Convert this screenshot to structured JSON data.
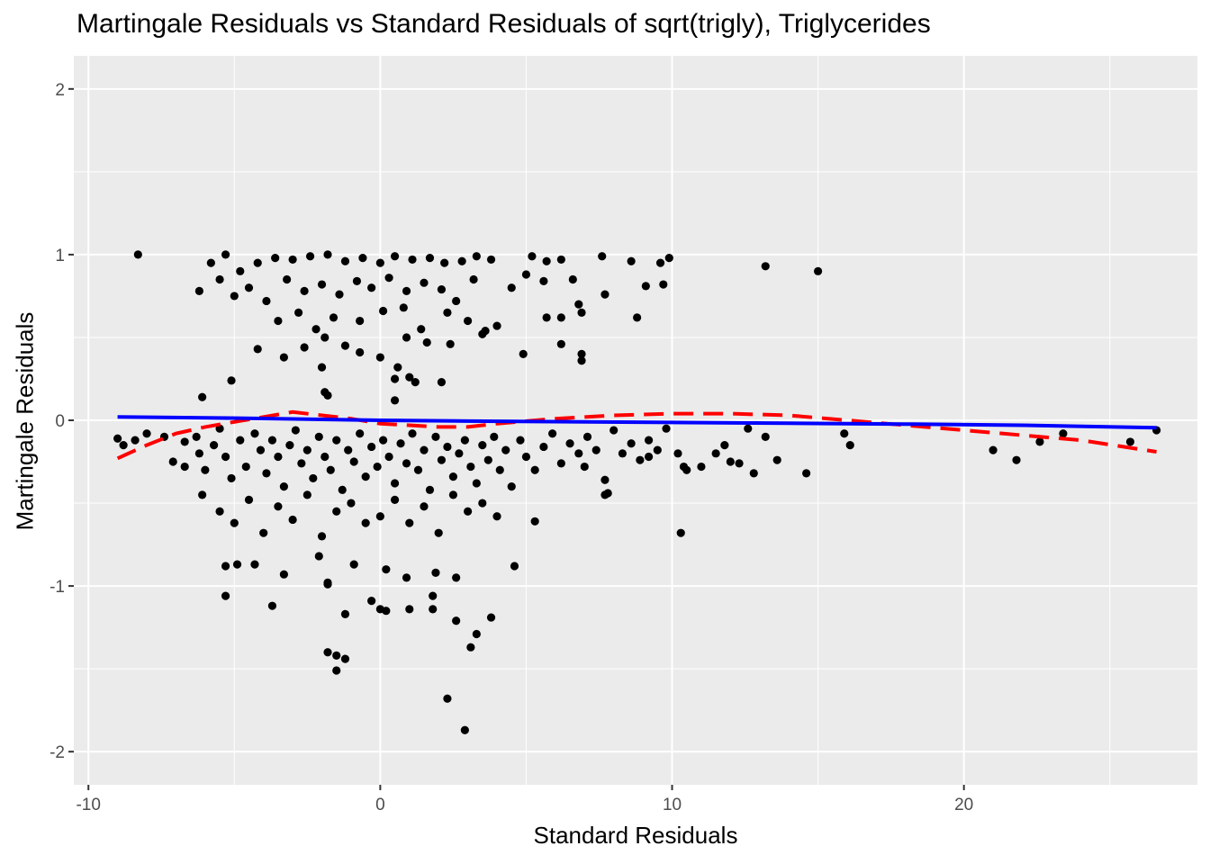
{
  "chart_data": {
    "type": "scatter",
    "title": "Martingale Residuals vs Standard Residuals of sqrt(trigly), Triglycerides",
    "xlabel": "Standard Residuals",
    "ylabel": "Martingale Residuals",
    "xlim": [
      -10.5,
      28
    ],
    "ylim": [
      -2.2,
      2.2
    ],
    "x_ticks": [
      -10,
      0,
      10,
      20
    ],
    "x_tick_labels": [
      "-10",
      "0",
      "10",
      "20"
    ],
    "y_ticks": [
      -2,
      -1,
      0,
      1,
      2
    ],
    "y_tick_labels": [
      "-2",
      "-1",
      "0",
      "1",
      "2"
    ],
    "grid": true,
    "background": "#ebebeb",
    "point_color": "#000000",
    "series": [
      {
        "type": "scatter",
        "color": "#000000",
        "points": [
          [
            -8.3,
            1.0
          ],
          [
            -5.3,
            1.0
          ],
          [
            -5.8,
            0.95
          ],
          [
            -4.8,
            0.9
          ],
          [
            -4.2,
            0.95
          ],
          [
            -3.6,
            0.98
          ],
          [
            -3.0,
            0.97
          ],
          [
            -2.4,
            0.99
          ],
          [
            -1.8,
            1.0
          ],
          [
            -1.2,
            0.96
          ],
          [
            -0.6,
            0.98
          ],
          [
            0.0,
            0.95
          ],
          [
            0.5,
            0.99
          ],
          [
            1.1,
            0.97
          ],
          [
            1.7,
            0.98
          ],
          [
            2.2,
            0.95
          ],
          [
            2.8,
            0.96
          ],
          [
            3.3,
            0.99
          ],
          [
            3.8,
            0.97
          ],
          [
            5.2,
            0.99
          ],
          [
            5.7,
            0.96
          ],
          [
            6.2,
            0.97
          ],
          [
            7.6,
            0.99
          ],
          [
            8.6,
            0.96
          ],
          [
            9.6,
            0.95
          ],
          [
            9.9,
            0.98
          ],
          [
            13.2,
            0.93
          ],
          [
            15.0,
            0.9
          ],
          [
            -6.2,
            0.78
          ],
          [
            -5.5,
            0.85
          ],
          [
            -5.0,
            0.75
          ],
          [
            -4.5,
            0.8
          ],
          [
            -3.9,
            0.72
          ],
          [
            -3.2,
            0.85
          ],
          [
            -2.6,
            0.78
          ],
          [
            -2.0,
            0.82
          ],
          [
            -1.4,
            0.76
          ],
          [
            -0.8,
            0.84
          ],
          [
            -0.3,
            0.8
          ],
          [
            0.3,
            0.86
          ],
          [
            0.9,
            0.78
          ],
          [
            1.5,
            0.83
          ],
          [
            2.1,
            0.79
          ],
          [
            2.6,
            0.72
          ],
          [
            3.2,
            0.85
          ],
          [
            4.5,
            0.8
          ],
          [
            5.0,
            0.88
          ],
          [
            5.6,
            0.84
          ],
          [
            6.6,
            0.85
          ],
          [
            7.7,
            0.76
          ],
          [
            9.1,
            0.81
          ],
          [
            9.7,
            0.82
          ],
          [
            -3.5,
            0.6
          ],
          [
            -2.8,
            0.65
          ],
          [
            -2.2,
            0.55
          ],
          [
            -1.6,
            0.62
          ],
          [
            -0.7,
            0.6
          ],
          [
            0.1,
            0.66
          ],
          [
            0.8,
            0.68
          ],
          [
            1.4,
            0.55
          ],
          [
            2.3,
            0.65
          ],
          [
            3.0,
            0.6
          ],
          [
            3.6,
            0.54
          ],
          [
            4.0,
            0.57
          ],
          [
            5.7,
            0.62
          ],
          [
            6.2,
            0.62
          ],
          [
            6.8,
            0.7
          ],
          [
            6.9,
            0.65
          ],
          [
            8.8,
            0.62
          ],
          [
            -4.2,
            0.43
          ],
          [
            -3.3,
            0.38
          ],
          [
            -2.6,
            0.44
          ],
          [
            -1.9,
            0.5
          ],
          [
            -1.2,
            0.45
          ],
          [
            -0.7,
            0.41
          ],
          [
            0.0,
            0.38
          ],
          [
            0.9,
            0.5
          ],
          [
            1.6,
            0.47
          ],
          [
            2.4,
            0.46
          ],
          [
            3.5,
            0.52
          ],
          [
            4.9,
            0.4
          ],
          [
            6.2,
            0.46
          ],
          [
            6.9,
            0.4
          ],
          [
            6.9,
            0.36
          ],
          [
            -2.0,
            0.32
          ],
          [
            0.6,
            0.32
          ],
          [
            1.0,
            0.26
          ],
          [
            -5.1,
            0.24
          ],
          [
            0.5,
            0.25
          ],
          [
            1.2,
            0.23
          ],
          [
            2.1,
            0.23
          ],
          [
            -1.9,
            0.17
          ],
          [
            0.5,
            0.12
          ],
          [
            -1.8,
            0.15
          ],
          [
            -6.1,
            0.14
          ],
          [
            -9.0,
            -0.11
          ],
          [
            -8.8,
            -0.15
          ],
          [
            -8.4,
            -0.12
          ],
          [
            -8.0,
            -0.08
          ],
          [
            -7.4,
            -0.1
          ],
          [
            -7.1,
            -0.25
          ],
          [
            -6.7,
            -0.13
          ],
          [
            -6.7,
            -0.28
          ],
          [
            -6.3,
            -0.1
          ],
          [
            -6.2,
            -0.2
          ],
          [
            -6.0,
            -0.3
          ],
          [
            -5.7,
            -0.15
          ],
          [
            -5.5,
            -0.05
          ],
          [
            -5.3,
            -0.22
          ],
          [
            -5.1,
            -0.35
          ],
          [
            -4.8,
            -0.12
          ],
          [
            -4.6,
            -0.28
          ],
          [
            -4.3,
            -0.08
          ],
          [
            -4.1,
            -0.18
          ],
          [
            -3.9,
            -0.32
          ],
          [
            -3.7,
            -0.12
          ],
          [
            -3.5,
            -0.22
          ],
          [
            -3.3,
            -0.4
          ],
          [
            -3.1,
            -0.15
          ],
          [
            -2.9,
            -0.06
          ],
          [
            -2.7,
            -0.26
          ],
          [
            -2.5,
            -0.18
          ],
          [
            -2.3,
            -0.35
          ],
          [
            -2.1,
            -0.1
          ],
          [
            -1.9,
            -0.22
          ],
          [
            -1.7,
            -0.3
          ],
          [
            -1.5,
            -0.12
          ],
          [
            -1.3,
            -0.42
          ],
          [
            -1.1,
            -0.18
          ],
          [
            -0.9,
            -0.25
          ],
          [
            -0.7,
            -0.08
          ],
          [
            -0.5,
            -0.34
          ],
          [
            -0.3,
            -0.16
          ],
          [
            -0.1,
            -0.28
          ],
          [
            0.1,
            -0.12
          ],
          [
            0.3,
            -0.22
          ],
          [
            0.5,
            -0.38
          ],
          [
            0.7,
            -0.14
          ],
          [
            0.9,
            -0.26
          ],
          [
            1.1,
            -0.08
          ],
          [
            1.3,
            -0.3
          ],
          [
            1.5,
            -0.18
          ],
          [
            1.7,
            -0.42
          ],
          [
            1.9,
            -0.1
          ],
          [
            2.1,
            -0.24
          ],
          [
            2.3,
            -0.16
          ],
          [
            2.5,
            -0.34
          ],
          [
            2.7,
            -0.2
          ],
          [
            2.9,
            -0.12
          ],
          [
            3.1,
            -0.28
          ],
          [
            3.3,
            -0.38
          ],
          [
            3.5,
            -0.15
          ],
          [
            3.7,
            -0.24
          ],
          [
            3.9,
            -0.1
          ],
          [
            4.1,
            -0.3
          ],
          [
            4.3,
            -0.18
          ],
          [
            4.5,
            -0.4
          ],
          [
            4.8,
            -0.12
          ],
          [
            5.0,
            -0.22
          ],
          [
            5.3,
            -0.3
          ],
          [
            5.6,
            -0.16
          ],
          [
            5.9,
            -0.08
          ],
          [
            6.2,
            -0.26
          ],
          [
            6.5,
            -0.14
          ],
          [
            6.8,
            -0.2
          ],
          [
            7.1,
            -0.1
          ],
          [
            7.4,
            -0.18
          ],
          [
            7.7,
            -0.36
          ],
          [
            8.0,
            -0.06
          ],
          [
            8.3,
            -0.2
          ],
          [
            8.6,
            -0.14
          ],
          [
            8.9,
            -0.24
          ],
          [
            9.2,
            -0.12
          ],
          [
            9.5,
            -0.18
          ],
          [
            9.8,
            -0.05
          ],
          [
            10.2,
            -0.2
          ],
          [
            10.5,
            -0.3
          ],
          [
            11.0,
            -0.28
          ],
          [
            11.5,
            -0.2
          ],
          [
            11.8,
            -0.15
          ],
          [
            12.3,
            -0.26
          ],
          [
            12.6,
            -0.05
          ],
          [
            13.2,
            -0.1
          ],
          [
            13.6,
            -0.24
          ],
          [
            14.6,
            -0.32
          ],
          [
            15.9,
            -0.08
          ],
          [
            16.1,
            -0.15
          ],
          [
            21.0,
            -0.18
          ],
          [
            21.8,
            -0.24
          ],
          [
            22.6,
            -0.13
          ],
          [
            23.4,
            -0.08
          ],
          [
            25.7,
            -0.13
          ],
          [
            26.6,
            -0.06
          ],
          [
            7.8,
            -0.44
          ],
          [
            7.7,
            -0.45
          ],
          [
            10.4,
            -0.28
          ],
          [
            12.0,
            -0.25
          ],
          [
            12.8,
            -0.32
          ],
          [
            9.2,
            -0.22
          ],
          [
            7.0,
            -0.28
          ],
          [
            -6.1,
            -0.45
          ],
          [
            -5.5,
            -0.55
          ],
          [
            -5.0,
            -0.62
          ],
          [
            -4.5,
            -0.48
          ],
          [
            -4.0,
            -0.68
          ],
          [
            -3.5,
            -0.52
          ],
          [
            -3.0,
            -0.6
          ],
          [
            -2.5,
            -0.45
          ],
          [
            -2.0,
            -0.7
          ],
          [
            -1.5,
            -0.55
          ],
          [
            -1.0,
            -0.5
          ],
          [
            -0.5,
            -0.62
          ],
          [
            0.0,
            -0.58
          ],
          [
            0.5,
            -0.48
          ],
          [
            1.0,
            -0.62
          ],
          [
            1.5,
            -0.52
          ],
          [
            2.0,
            -0.68
          ],
          [
            2.5,
            -0.45
          ],
          [
            3.0,
            -0.55
          ],
          [
            3.5,
            -0.5
          ],
          [
            4.0,
            -0.58
          ],
          [
            5.3,
            -0.61
          ],
          [
            10.3,
            -0.68
          ],
          [
            -5.3,
            -0.88
          ],
          [
            -4.9,
            -0.87
          ],
          [
            -4.3,
            -0.87
          ],
          [
            -3.3,
            -0.93
          ],
          [
            -2.1,
            -0.82
          ],
          [
            -1.8,
            -0.98
          ],
          [
            -0.9,
            -0.87
          ],
          [
            0.2,
            -0.9
          ],
          [
            0.9,
            -0.95
          ],
          [
            1.9,
            -0.92
          ],
          [
            2.6,
            -0.95
          ],
          [
            4.6,
            -0.88
          ],
          [
            -5.3,
            -1.06
          ],
          [
            -3.7,
            -1.12
          ],
          [
            -1.8,
            -0.99
          ],
          [
            -0.3,
            -1.09
          ],
          [
            0.0,
            -1.14
          ],
          [
            0.2,
            -1.15
          ],
          [
            1.0,
            -1.14
          ],
          [
            1.8,
            -1.14
          ],
          [
            1.8,
            -1.06
          ],
          [
            -1.2,
            -1.17
          ],
          [
            2.6,
            -1.21
          ],
          [
            3.8,
            -1.19
          ],
          [
            3.3,
            -1.29
          ],
          [
            3.1,
            -1.37
          ],
          [
            -1.8,
            -1.4
          ],
          [
            -1.5,
            -1.42
          ],
          [
            -1.2,
            -1.44
          ],
          [
            -1.5,
            -1.51
          ],
          [
            2.3,
            -1.68
          ],
          [
            2.9,
            -1.87
          ]
        ]
      },
      {
        "type": "line",
        "style": "dashed",
        "color": "#ff0000",
        "points": [
          [
            -9.0,
            -0.23
          ],
          [
            -8.0,
            -0.15
          ],
          [
            -7.0,
            -0.08
          ],
          [
            -6.0,
            -0.04
          ],
          [
            -5.0,
            -0.01
          ],
          [
            -4.0,
            0.02
          ],
          [
            -3.0,
            0.05
          ],
          [
            -2.0,
            0.03
          ],
          [
            -1.0,
            0.01
          ],
          [
            0.0,
            -0.02
          ],
          [
            1.0,
            -0.03
          ],
          [
            2.0,
            -0.04
          ],
          [
            3.0,
            -0.04
          ],
          [
            4.0,
            -0.02
          ],
          [
            6.0,
            0.01
          ],
          [
            8.0,
            0.03
          ],
          [
            10.0,
            0.04
          ],
          [
            12.0,
            0.04
          ],
          [
            14.0,
            0.03
          ],
          [
            16.0,
            0.0
          ],
          [
            18.0,
            -0.03
          ],
          [
            20.0,
            -0.06
          ],
          [
            22.0,
            -0.09
          ],
          [
            24.0,
            -0.12
          ],
          [
            26.6,
            -0.19
          ]
        ]
      },
      {
        "type": "line",
        "style": "solid",
        "color": "#0000ff",
        "points": [
          [
            -9.0,
            0.02
          ],
          [
            -6.0,
            0.015
          ],
          [
            -3.0,
            0.008
          ],
          [
            0.0,
            0.0
          ],
          [
            3.0,
            -0.005
          ],
          [
            6.0,
            -0.008
          ],
          [
            10.0,
            -0.013
          ],
          [
            14.0,
            -0.018
          ],
          [
            18.0,
            -0.023
          ],
          [
            22.0,
            -0.03
          ],
          [
            26.6,
            -0.045
          ]
        ]
      }
    ]
  }
}
